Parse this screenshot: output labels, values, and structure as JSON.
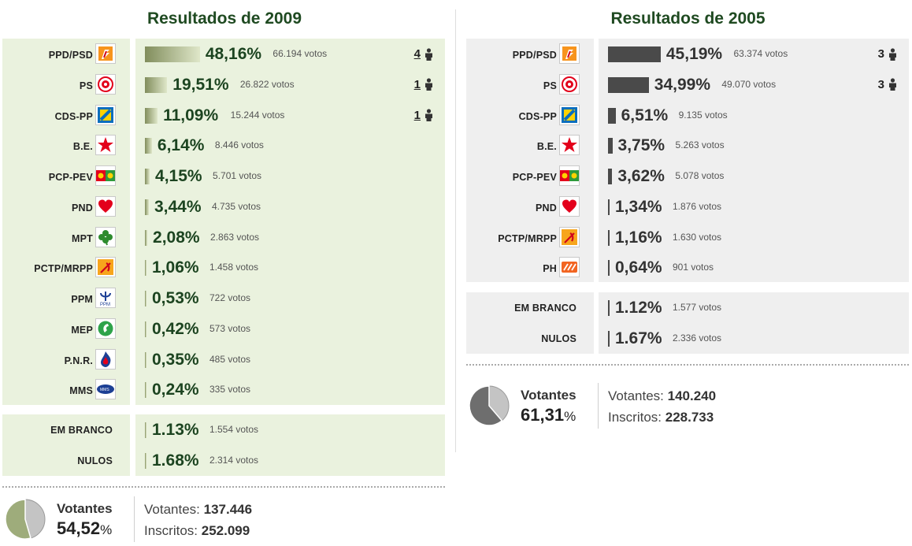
{
  "y2009": {
    "title": "Resultados de 2009",
    "parties": [
      {
        "name": "PPD/PSD",
        "pct": "48,16%",
        "votes": "66.194 votos",
        "seats": "4",
        "share": 48.16,
        "icon": "psd-logo-icon"
      },
      {
        "name": "PS",
        "pct": "19,51%",
        "votes": "26.822 votos",
        "seats": "1",
        "share": 19.51,
        "icon": "ps-logo-icon"
      },
      {
        "name": "CDS-PP",
        "pct": "11,09%",
        "votes": "15.244 votos",
        "seats": "1",
        "share": 11.09,
        "icon": "cds-logo-icon"
      },
      {
        "name": "B.E.",
        "pct": "6,14%",
        "votes": "8.446 votos",
        "seats": "",
        "share": 6.14,
        "icon": "be-star-icon"
      },
      {
        "name": "PCP-PEV",
        "pct": "4,15%",
        "votes": "5.701 votos",
        "seats": "",
        "share": 4.15,
        "icon": "cdu-logo-icon"
      },
      {
        "name": "PND",
        "pct": "3,44%",
        "votes": "4.735 votos",
        "seats": "",
        "share": 3.44,
        "icon": "pnd-heart-icon"
      },
      {
        "name": "MPT",
        "pct": "2,08%",
        "votes": "2.863 votos",
        "seats": "",
        "share": 2.08,
        "icon": "mpt-clover-icon"
      },
      {
        "name": "PCTP/MRPP",
        "pct": "1,06%",
        "votes": "1.458 votos",
        "seats": "",
        "share": 1.06,
        "icon": "mrpp-logo-icon"
      },
      {
        "name": "PPM",
        "pct": "0,53%",
        "votes": "722 votos",
        "seats": "",
        "share": 0.53,
        "icon": "ppm-logo-icon"
      },
      {
        "name": "MEP",
        "pct": "0,42%",
        "votes": "573 votos",
        "seats": "",
        "share": 0.42,
        "icon": "mep-logo-icon"
      },
      {
        "name": "P.N.R.",
        "pct": "0,35%",
        "votes": "485 votos",
        "seats": "",
        "share": 0.35,
        "icon": "pnr-flame-icon"
      },
      {
        "name": "MMS",
        "pct": "0,24%",
        "votes": "335 votos",
        "seats": "",
        "share": 0.24,
        "icon": "mms-logo-icon"
      }
    ],
    "others": [
      {
        "name": "EM BRANCO",
        "pct": "1.13%",
        "votes": "1.554 votos"
      },
      {
        "name": "NULOS",
        "pct": "1.68%",
        "votes": "2.314 votos"
      }
    ],
    "turnout": {
      "label": "Votantes",
      "pct": "54,52",
      "pct_sign": "%",
      "turnout_share": 54.52,
      "voters_label": "Votantes:",
      "voters": "137.446",
      "registered_label": "Inscritos:",
      "registered": "252.099"
    }
  },
  "y2005": {
    "title": "Resultados de 2005",
    "parties": [
      {
        "name": "PPD/PSD",
        "pct": "45,19%",
        "votes": "63.374 votos",
        "seats": "3",
        "share": 45.19,
        "icon": "psd-logo-icon"
      },
      {
        "name": "PS",
        "pct": "34,99%",
        "votes": "49.070 votos",
        "seats": "3",
        "share": 34.99,
        "icon": "ps-logo-icon"
      },
      {
        "name": "CDS-PP",
        "pct": "6,51%",
        "votes": "9.135 votos",
        "seats": "",
        "share": 6.51,
        "icon": "cds-logo-icon"
      },
      {
        "name": "B.E.",
        "pct": "3,75%",
        "votes": "5.263 votos",
        "seats": "",
        "share": 3.75,
        "icon": "be-star-icon"
      },
      {
        "name": "PCP-PEV",
        "pct": "3,62%",
        "votes": "5.078 votos",
        "seats": "",
        "share": 3.62,
        "icon": "cdu-logo-icon"
      },
      {
        "name": "PND",
        "pct": "1,34%",
        "votes": "1.876 votos",
        "seats": "",
        "share": 1.34,
        "icon": "pnd-heart-icon"
      },
      {
        "name": "PCTP/MRPP",
        "pct": "1,16%",
        "votes": "1.630 votos",
        "seats": "",
        "share": 1.16,
        "icon": "mrpp-logo-icon"
      },
      {
        "name": "PH",
        "pct": "0,64%",
        "votes": "901 votos",
        "seats": "",
        "share": 0.64,
        "icon": "ph-logo-icon"
      }
    ],
    "others": [
      {
        "name": "EM BRANCO",
        "pct": "1.12%",
        "votes": "1.577 votos"
      },
      {
        "name": "NULOS",
        "pct": "1.67%",
        "votes": "2.336 votos"
      }
    ],
    "turnout": {
      "label": "Votantes",
      "pct": "61,31",
      "pct_sign": "%",
      "turnout_share": 61.31,
      "voters_label": "Votantes:",
      "voters": "140.240",
      "registered_label": "Inscritos:",
      "registered": "228.733"
    }
  },
  "colors": {
    "green_bg": "#eaf2de",
    "grey_bg": "#efefef",
    "title": "#1f4a21",
    "bar_2005": "#4a4a4a"
  }
}
